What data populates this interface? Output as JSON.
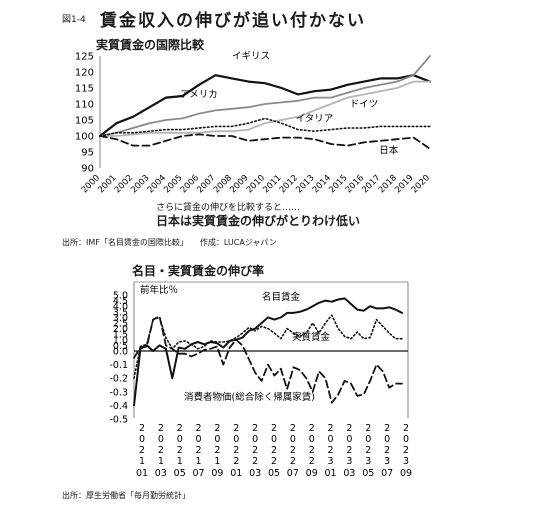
{
  "figure": {
    "number": "図1-4",
    "title": "賃金収入の伸びが追い付かない",
    "caption_small": "さらに賃金の伸びを比較すると……",
    "caption_bold": "日本は実質賃金の伸びがとりわけ低い",
    "source1": "出所：IMF「名目賃金の国際比較」　　作成：LUCAジャパン",
    "source2": "出所：厚生労働省「毎月勤労統計」"
  },
  "chart_data": [
    {
      "type": "line",
      "title": "実質賃金の国際比較",
      "x": [
        "2000",
        "2001",
        "2002",
        "2003",
        "2004",
        "2005",
        "2006",
        "2007",
        "2008",
        "2009",
        "2010",
        "2011",
        "2012",
        "2013",
        "2014",
        "2015",
        "2016",
        "2017",
        "2018",
        "2019",
        "2020"
      ],
      "ylim": [
        90,
        125
      ],
      "yticks": [
        90,
        95,
        100,
        105,
        110,
        115,
        120,
        125
      ],
      "grid": false,
      "series": [
        {
          "name": "イギリス",
          "color": "#111111",
          "style": "solid",
          "width": 2.2,
          "values": [
            100,
            104,
            106,
            109,
            112,
            112.5,
            116,
            119,
            118,
            117,
            116.5,
            115,
            113,
            114,
            114.5,
            116,
            117,
            118,
            118,
            119,
            117
          ]
        },
        {
          "name": "アメリカ",
          "color": "#8a8a8a",
          "style": "solid",
          "width": 1.8,
          "values": [
            100,
            101,
            102.5,
            104,
            105,
            105.5,
            107,
            108,
            108.5,
            109,
            110,
            110.5,
            111,
            112,
            112,
            113.5,
            115,
            116,
            117,
            119,
            125
          ]
        },
        {
          "name": "ドイツ",
          "color": "#b5b5b5",
          "style": "solid",
          "width": 1.8,
          "values": [
            100,
            100,
            100.5,
            101,
            101,
            101,
            101,
            101.5,
            101.5,
            102,
            104,
            105,
            106,
            108,
            110,
            112,
            113,
            114,
            115,
            117,
            117
          ]
        },
        {
          "name": "イタリア",
          "color": "#111111",
          "style": "dotted",
          "width": 1.6,
          "values": [
            100,
            101,
            101,
            101.5,
            102,
            102,
            102.5,
            103,
            103,
            104,
            105.5,
            104,
            102,
            101.5,
            102,
            102.5,
            102.5,
            103,
            103,
            103,
            103
          ]
        },
        {
          "name": "日本",
          "color": "#111111",
          "style": "dashed",
          "width": 1.8,
          "values": [
            100,
            99,
            97,
            97,
            98.5,
            100,
            100.5,
            100,
            100,
            98.5,
            99,
            99.5,
            99.5,
            99,
            97.5,
            97,
            98,
            98.5,
            99,
            99.5,
            96
          ]
        }
      ],
      "xlabel": "",
      "ylabel": ""
    },
    {
      "type": "line",
      "title": "名目・実質賃金の伸び率",
      "ylabel": "前年比％",
      "xlabel": "",
      "ylim": [
        -0.5,
        5.0
      ],
      "yticks": [
        -0.5,
        -0.4,
        -0.3,
        -0.2,
        -0.1,
        0.0,
        0.5,
        1.0,
        1.5,
        2.0,
        2.5,
        3.0,
        3.5,
        4.0,
        4.5,
        5.0
      ],
      "x_tick_labels": [
        {
          "year": "2021",
          "month": "01"
        },
        {
          "year": "2021",
          "month": "03"
        },
        {
          "year": "2021",
          "month": "05"
        },
        {
          "year": "2021",
          "month": "07"
        },
        {
          "year": "2021",
          "month": "09"
        },
        {
          "year": "2022",
          "month": "01"
        },
        {
          "year": "2022",
          "month": "03"
        },
        {
          "year": "2022",
          "month": "05"
        },
        {
          "year": "2022",
          "month": "07"
        },
        {
          "year": "2022",
          "month": "09"
        },
        {
          "year": "2023",
          "month": "01"
        },
        {
          "year": "2023",
          "month": "03"
        },
        {
          "year": "2023",
          "month": "05"
        },
        {
          "year": "2023",
          "month": "07"
        },
        {
          "year": "2023",
          "month": "09"
        }
      ],
      "series": [
        {
          "name": "名目賃金",
          "color": "#111111",
          "style": "solid",
          "width": 2.0,
          "values": [
            -0.4,
            0.2,
            0.5,
            0.0,
            0.5,
            0.2,
            -0.2,
            0.3,
            0.2,
            0.6,
            0.8,
            0.6,
            0.8,
            0.7,
            0.3,
            0.9,
            1.0,
            1.2,
            1.8,
            2.0,
            2.5,
            3.0,
            2.8,
            3.0,
            3.4,
            3.4,
            3.5,
            3.7,
            4.0,
            4.3,
            4.5,
            4.4,
            4.6,
            4.7,
            4.2,
            3.7,
            3.6,
            4.0,
            3.8,
            3.8,
            3.9,
            3.7,
            3.4
          ]
        },
        {
          "name": "実質賃金",
          "color": "#111111",
          "style": "dotted",
          "width": 1.6,
          "values": [
            -0.2,
            0.4,
            0.6,
            2.8,
            3.0,
            1.2,
            0.2,
            0.8,
            0.9,
            0.6,
            0.2,
            0.4,
            0.9,
            0.8,
            0.8,
            0.9,
            1.2,
            1.6,
            2.1,
            1.8,
            2.2,
            2.0,
            1.6,
            1.1,
            2.0,
            1.6,
            1.3,
            1.6,
            2.5,
            1.6,
            2.5,
            3.2,
            2.0,
            1.3,
            1.1,
            1.7,
            1.1,
            1.2,
            2.8,
            2.2,
            1.6,
            1.1,
            1.1
          ]
        },
        {
          "name": "消費者物価(総合除く帰属家賃)",
          "color": "#111111",
          "style": "dashed",
          "width": 1.8,
          "values": [
            -0.05,
            0.3,
            0.4,
            2.8,
            3.1,
            0.5,
            0.2,
            -0.02,
            -0.02,
            -0.04,
            -0.02,
            0.1,
            0.2,
            0.4,
            -0.1,
            0.3,
            1.0,
            0.5,
            -0.06,
            -0.16,
            -0.22,
            -0.1,
            -0.18,
            -0.13,
            -0.28,
            -0.12,
            -0.14,
            -0.2,
            -0.3,
            -0.15,
            -0.2,
            -0.38,
            -0.32,
            -0.22,
            -0.24,
            -0.33,
            -0.32,
            -0.22,
            -0.1,
            -0.15,
            -0.27,
            -0.24,
            -0.24
          ]
        }
      ]
    }
  ]
}
